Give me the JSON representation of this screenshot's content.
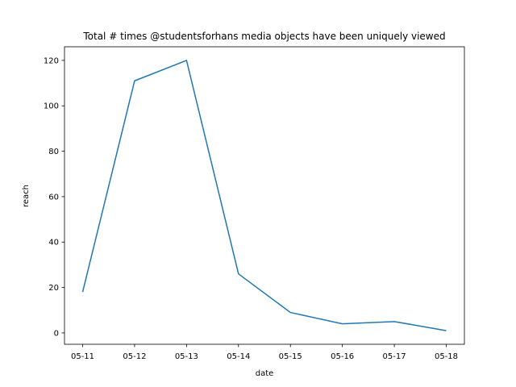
{
  "chart_data": {
    "type": "line",
    "title": "Total # times @studentsforhans media objects have been uniquely viewed",
    "xlabel": "date",
    "ylabel": "reach",
    "categories": [
      "05-11",
      "05-12",
      "05-13",
      "05-14",
      "05-15",
      "05-16",
      "05-17",
      "05-18"
    ],
    "series": [
      {
        "values": [
          18,
          111,
          120,
          26,
          9,
          4,
          5,
          1
        ],
        "color": "#1f77b4"
      }
    ],
    "yticks": [
      0,
      20,
      40,
      60,
      80,
      100,
      120
    ],
    "ylim": [
      -5,
      126
    ],
    "grid": false,
    "legend": "none"
  }
}
